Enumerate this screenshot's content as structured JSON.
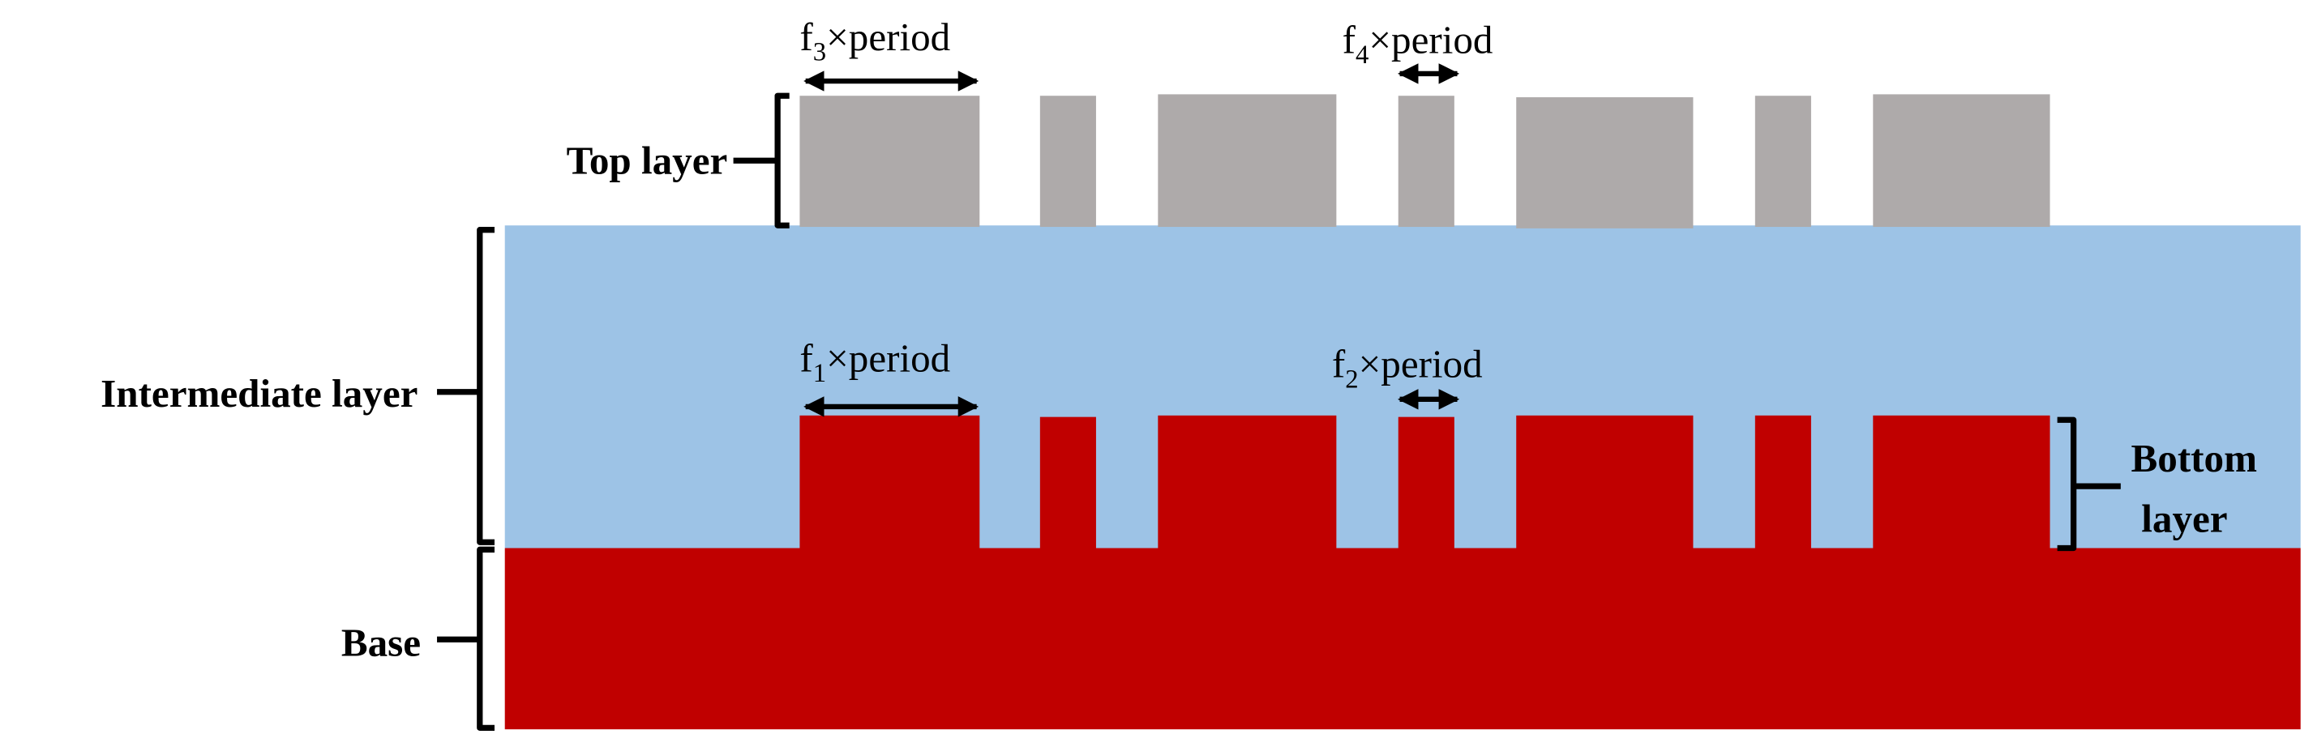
{
  "labels": {
    "top_layer": "Top layer",
    "intermediate_layer": "Intermediate layer",
    "base": "Base",
    "bottom_layer": [
      "Bottom",
      "layer"
    ]
  },
  "annotations": [
    {
      "base": "f",
      "sub": "3",
      "rest": "×period"
    },
    {
      "base": "f",
      "sub": "4",
      "rest": "×period"
    },
    {
      "base": "f",
      "sub": "1",
      "rest": "×period"
    },
    {
      "base": "f",
      "sub": "2",
      "rest": "×period"
    }
  ]
}
